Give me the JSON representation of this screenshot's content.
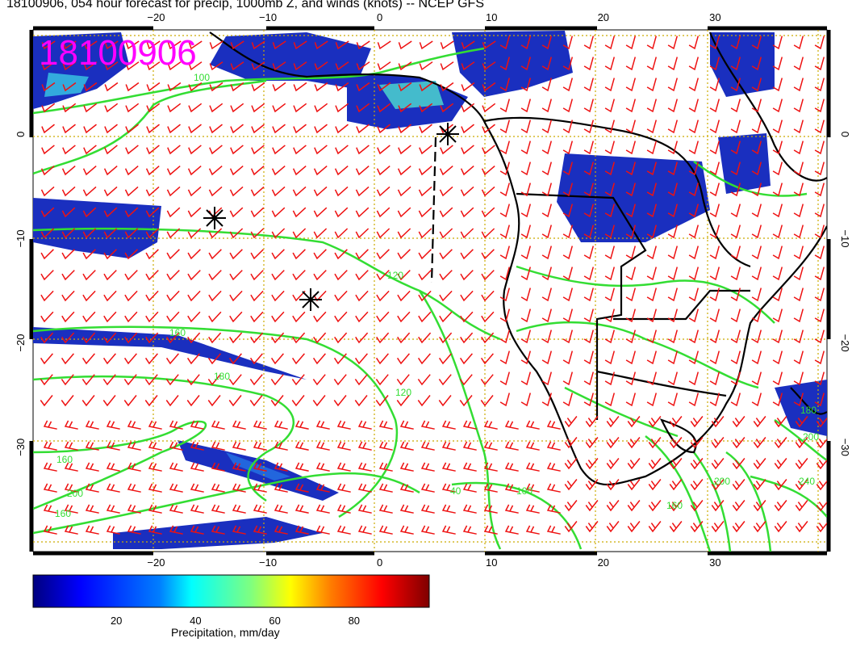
{
  "title": "18100906, 054 hour forecast for precip, 1000mb Z, and winds (knots) -- NCEP GFS",
  "date_stamp": "18100906",
  "map": {
    "lon_range": [
      -31,
      40
    ],
    "lat_range": [
      -40,
      10
    ],
    "x_ticks": [
      "−20",
      "−10",
      "0",
      "10",
      "20",
      "30"
    ],
    "x_tick_values": [
      -20,
      -10,
      0,
      10,
      20,
      30
    ],
    "y_ticks": [
      "0",
      "−10",
      "−20",
      "−30"
    ],
    "y_tick_values": [
      0,
      -10,
      -20,
      -30
    ],
    "contour_labels": [
      "100",
      "120",
      "160",
      "180",
      "200",
      "160",
      "120",
      "40",
      "100",
      "160",
      "200",
      "240",
      "160",
      "180",
      "200"
    ],
    "colors": {
      "precip_scale": [
        "#00007f",
        "#0000ff",
        "#007fff",
        "#00ffff",
        "#7fff7f",
        "#ffff00",
        "#ff7f00",
        "#ff0000",
        "#7f0000"
      ],
      "contour": "#33dd33",
      "wind_barbs": "#ee1111",
      "coastline": "#000000",
      "grid": "#ccaa00",
      "stamp": "#ff00ff"
    },
    "markers": [
      "asterisk",
      "asterisk",
      "asterisk"
    ]
  },
  "colorbar": {
    "ticks": [
      "20",
      "40",
      "60",
      "80"
    ],
    "label": "Precipitation, mm/day"
  }
}
